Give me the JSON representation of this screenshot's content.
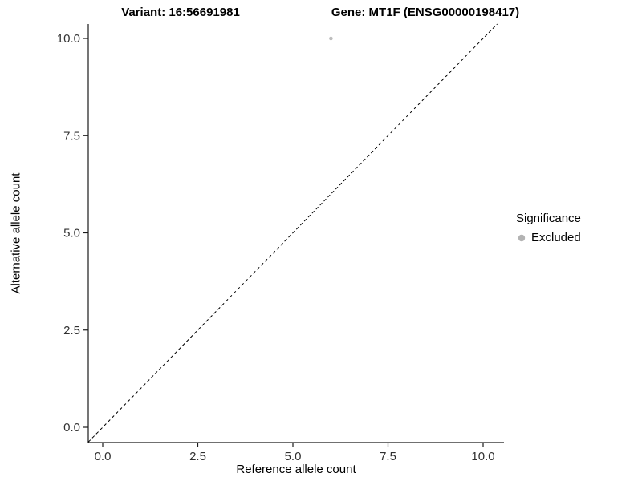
{
  "titles": {
    "variant": "Variant: 16:56691981",
    "gene": "Gene: MT1F (ENSG00000198417)"
  },
  "chart_data": {
    "type": "scatter",
    "title": "Variant: 16:56691981 | Gene: MT1F (ENSG00000198417)",
    "xlabel": "Reference allele count",
    "ylabel": "Alternative allele count",
    "xlim": [
      -0.4,
      10.55
    ],
    "ylim": [
      -0.4,
      10.4
    ],
    "xticks": [
      0,
      2.5,
      5,
      7.5,
      10
    ],
    "xtick_labels": [
      "0.0",
      "2.5",
      "5.0",
      "7.5",
      "10.0"
    ],
    "yticks": [
      0,
      2.5,
      5,
      7.5,
      10
    ],
    "ytick_labels": [
      "0.0",
      "2.5",
      "5.0",
      "7.5",
      "10.0"
    ],
    "grid": false,
    "reference_line": {
      "type": "identity",
      "equation": "y = x",
      "style": "dashed",
      "color": "#000000"
    },
    "points": [
      {
        "x": 6,
        "y": 10,
        "series": "Excluded"
      }
    ],
    "series": [
      {
        "name": "Excluded",
        "color": "#bdbdbd"
      }
    ],
    "legend": {
      "title": "Significance",
      "position": "right",
      "items": [
        {
          "label": "Excluded",
          "color": "#b3b3b3"
        }
      ]
    },
    "style": {
      "axis_color": "#1a1a1a",
      "tick_label_color": "#303030",
      "point_radius": 2.3
    }
  }
}
